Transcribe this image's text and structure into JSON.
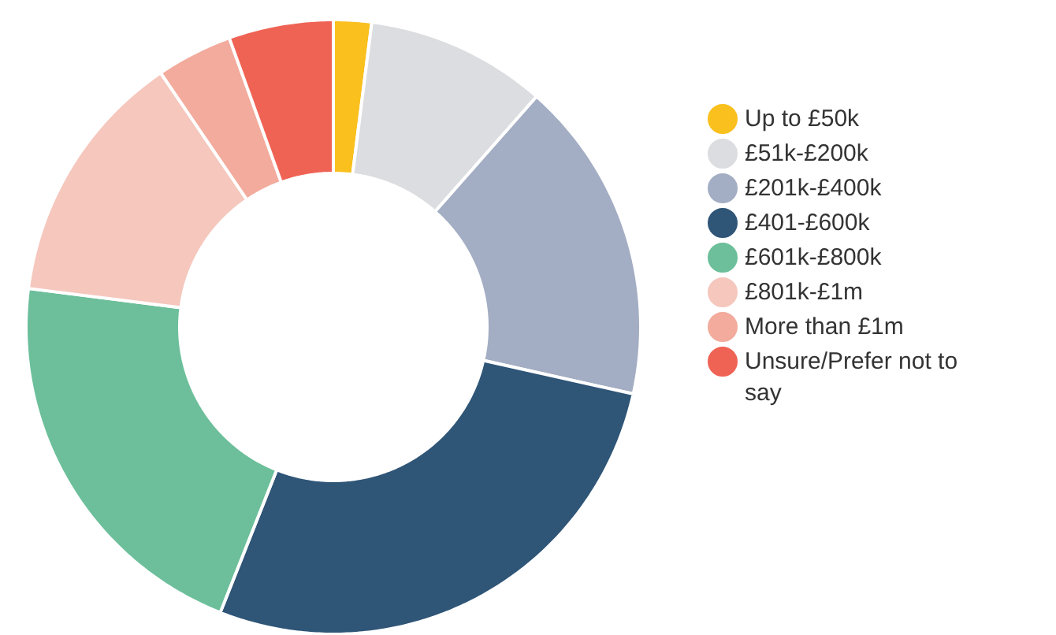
{
  "chart_data": {
    "type": "donut",
    "categories": [
      "Up to £50k",
      "£51k-£200k",
      "£201k-£400k",
      "£401-£600k",
      "£601k-£800k",
      "£801k-£1m",
      "More than £1m",
      "Unsure/Prefer not to say"
    ],
    "values": [
      2,
      9.5,
      17,
      27.5,
      21,
      13.5,
      4,
      5.5
    ],
    "colors": [
      "#f9c01e",
      "#dcdde0",
      "#a3adc3",
      "#2f5577",
      "#6cbf9a",
      "#f5c7bd",
      "#f2ab9c",
      "#ef6355"
    ],
    "legend": "right",
    "marker": "circle"
  }
}
